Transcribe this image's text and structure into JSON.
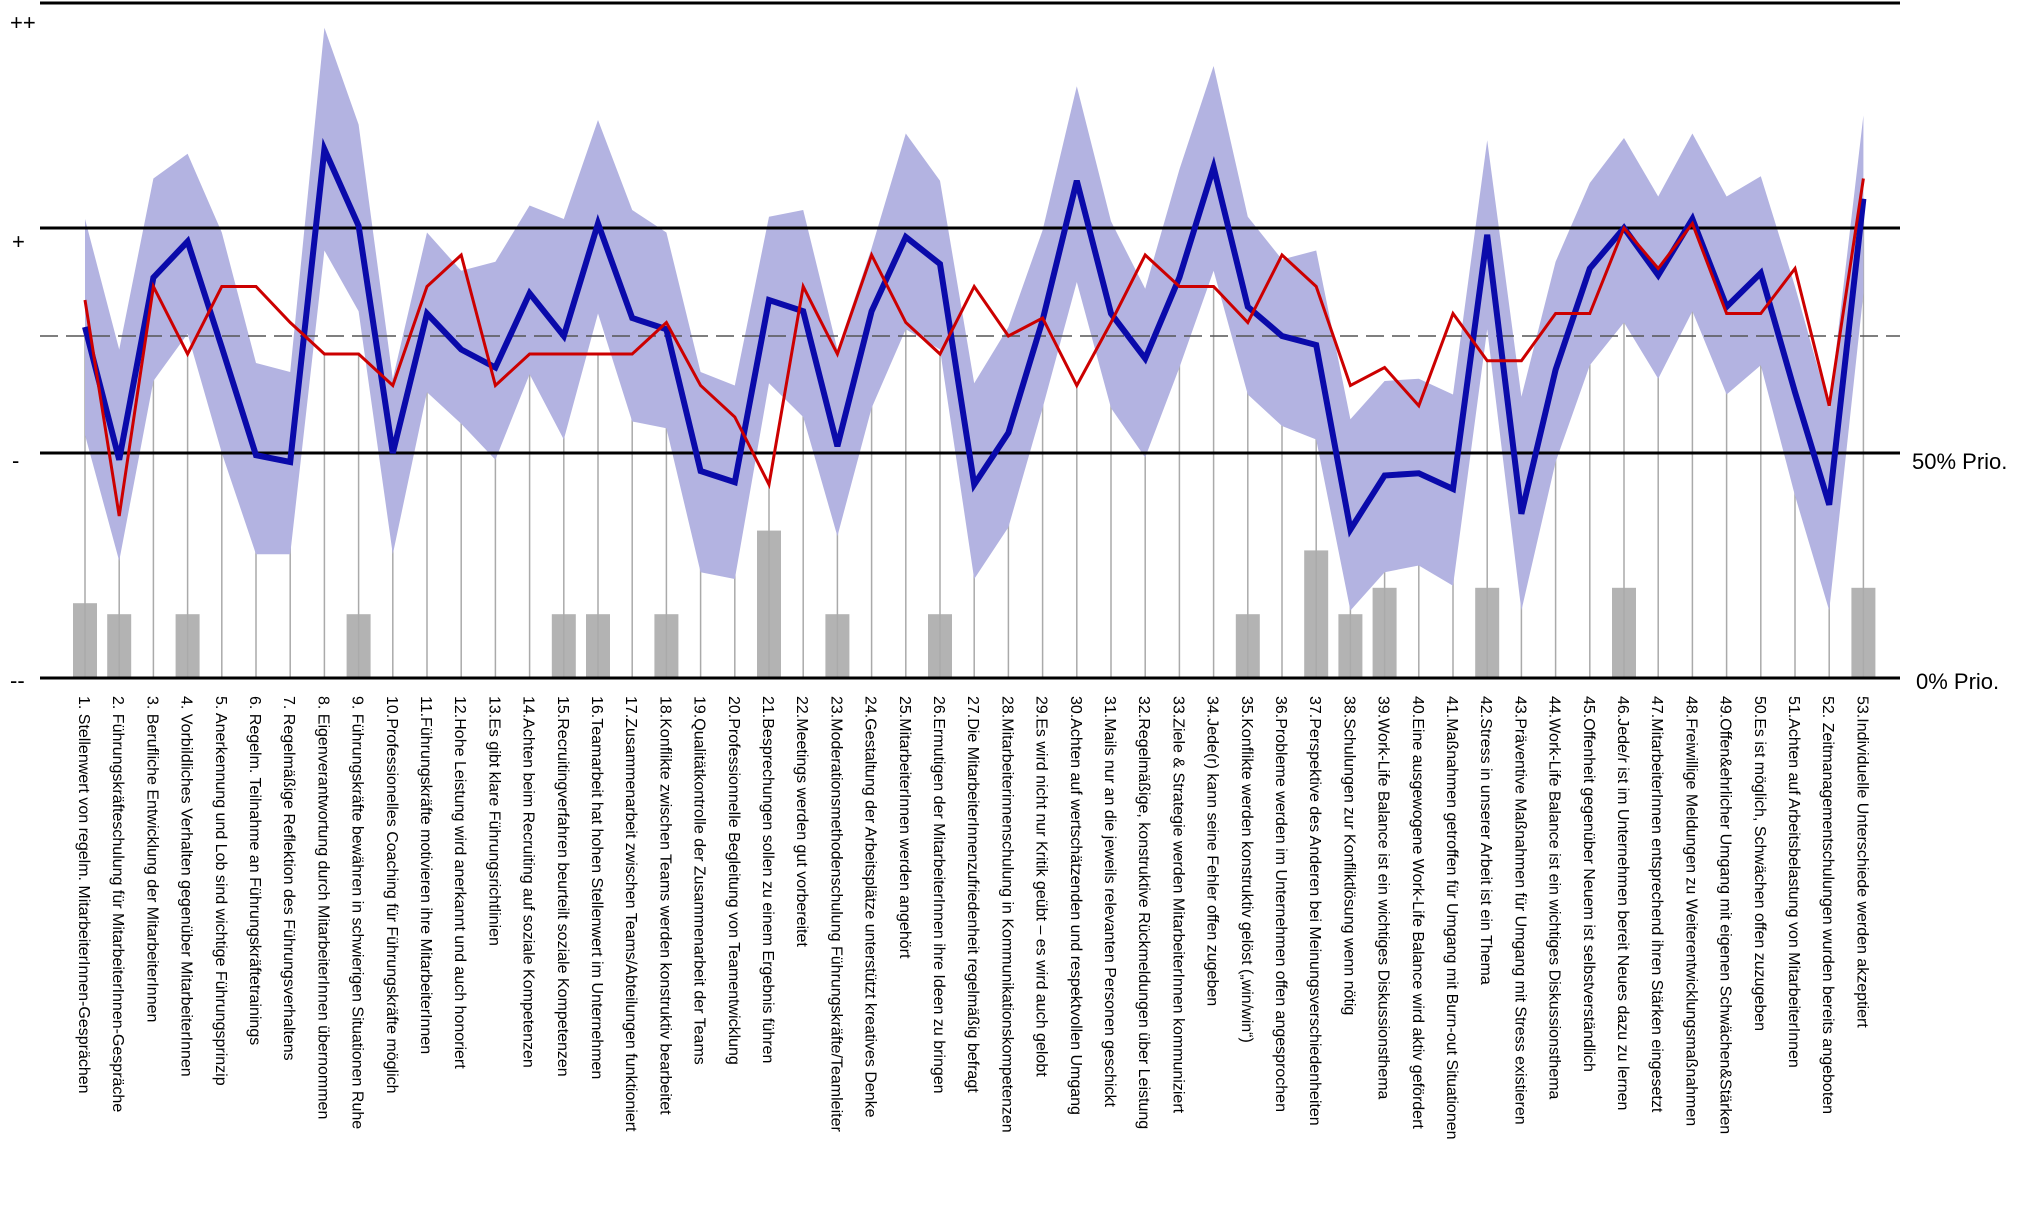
{
  "chart_data": {
    "type": "line",
    "title": "",
    "y_levels": [
      "++",
      "+",
      "-",
      "--"
    ],
    "right_labels": [
      "50% Prio.",
      "0% Prio."
    ],
    "categories": [
      "1.  Stellenwert von regelm. MitarbeiterInnen-Gesprächen",
      "2.  Führungskräfteschulung für MitarbeiterInnen-Gespräche",
      "3.  Berufliche Entwicklung der MitarbeiterInnen",
      "4.  Vorbildliches Verhalten gegenüber MitarbeiterInnen",
      "5.  Anerkennung und Lob sind wichtige Führungsprinzip",
      "6.  Regelm. Teilnahme an Führungskräftetrainings",
      "7.  Regelmäßige Reflektion des Führungsverhaltens",
      "8.  Eigenverantwortung durch MitarbeiterInnen übernommen",
      "9.  Führungskräfte bewähren in schwierigen Situationen Ruhe",
      "10.Professionelles Coaching für Führungskräfte möglich",
      "11.Führungskräfte motivieren ihre MitarbeiterInnen",
      "12.Hohe Leistung wird anerkannt und auch honoriert",
      "13.Es gibt klare Führungsrichtlinien",
      "14.Achten beim Recruiting auf soziale Kompetenzen",
      "15.Recruitingverfahren beurteilt soziale Kompetenzen",
      "16.Teamarbeit hat hohen Stellenwert im Unternehmen",
      "17.Zusammenarbeit zwischen Teams/Abteilungen funktioniert",
      "18.Konflikte zwischen Teams werden konstruktiv bearbeitet",
      "19.Qualitätkontrolle der Zusammenarbeit der Teams",
      "20.Professionnelle Begleitung von Teamentwicklung",
      "21.Besprechungen sollen zu einem Ergebnis führen",
      "22.Meetings werden gut vorbereitet",
      "23.Moderationsmethodenschulung Führungskräfte/Teamleiter",
      "24.Gestaltung der Arbeitsplätze unterstützt kreatives Denke",
      "25.MitarbeiterInnen werden angehört",
      "26.Ermutigen der MitarbeiterInnen ihre Ideen zu bringen",
      "27.Die MitarbeiterInnenzufriedenheit regelmäßig befragt",
      "28.Mitarbeiterinnenschulung in Kommunikationskompetenzen",
      "29.Es wird nicht nur Kritik geübt – es wird auch gelobt",
      "30.Achten auf wertschätzenden und respektvollen Umgang",
      "31.Mails nur an die jeweils relevanten Personen geschickt",
      "32.Regelmäßige, konstruktive Rückmeldungen über Leistung",
      "33.Ziele & Strategie werden MitarbeiterInnen kommuniziert",
      "34.Jede(r) kann seine Fehler offen zugeben",
      "35.Konflikte werden konstruktiv gelöst („win/win“)",
      "36.Probleme werden im Unternehmen offen angesprochen",
      "37.Perspektive des Anderen bei Meinungsverschiedenheiten",
      "38.Schulungen zur Konfliktlösung wenn nötig",
      "39.Work-Life Balance ist ein wichtiges Diskussionsthema",
      "40.Eine ausgewogene Work-Life Balance wird aktiv gefördert",
      "41.Maßnahmen getroffen für Umgang mit Burn-out Situationen",
      "42.Stress in unserer Arbeit ist ein Thema",
      "43.Präventive Maßnahmen für Umgang mit Stress existieren",
      "44.Work-Life Balance ist ein wichtiges Diskussionsthema",
      "45.Offenheit gegenüber Neuem ist selbstverständlich",
      "46.Jede/r ist im Unternehmen bereit Neues dazu zu lernen",
      "47.MitarbeiterInnen entsprechend ihren Stärken eingesetzt",
      "48.Freiwillige Meldungen zu Weiterentwicklungsmaßnahmen",
      "49.Offen&ehrlicher Umgang mit eigenen Schwächen&Stärken",
      "50.Es ist möglich, Schwächen offen zuzugeben",
      "51.Achten auf Arbeitsbelastung von MitarbeiterInnen",
      "52. Zeitmanagementschulungen wurden bereits angeboten",
      "53.Individuelle Unterschiede werden akzeptiert"
    ],
    "ylim": [
      0,
      3
    ],
    "y_tick_values": [
      3,
      2,
      1,
      0
    ],
    "reference_line_dashed": 1.52,
    "band_color": "#b3b3e1",
    "bar_color": "#b3b3b3",
    "series": [
      {
        "color": "#0a0aaa",
        "values": [
          1.56,
          0.97,
          1.78,
          1.94,
          1.47,
          0.99,
          0.96,
          2.35,
          2.01,
          1.0,
          1.62,
          1.46,
          1.38,
          1.71,
          1.52,
          2.02,
          1.6,
          1.55,
          0.92,
          0.87,
          1.68,
          1.63,
          1.03,
          1.63,
          1.96,
          1.84,
          0.86,
          1.09,
          1.59,
          2.21,
          1.62,
          1.42,
          1.78,
          2.27,
          1.65,
          1.52,
          1.48,
          0.66,
          0.9,
          0.91,
          0.84,
          1.97,
          0.73,
          1.37,
          1.82,
          2.0,
          1.79,
          2.04,
          1.65,
          1.8,
          1.27,
          0.77,
          2.13
        ]
      },
      {
        "color": "#cc0000",
        "values": [
          1.68,
          0.72,
          1.74,
          1.44,
          1.74,
          1.74,
          1.58,
          1.44,
          1.44,
          1.3,
          1.74,
          1.88,
          1.3,
          1.44,
          1.44,
          1.44,
          1.44,
          1.58,
          1.3,
          1.16,
          0.86,
          1.74,
          1.44,
          1.88,
          1.58,
          1.44,
          1.74,
          1.52,
          1.6,
          1.3,
          1.58,
          1.88,
          1.74,
          1.74,
          1.58,
          1.88,
          1.74,
          1.3,
          1.38,
          1.21,
          1.62,
          1.41,
          1.41,
          1.62,
          1.62,
          2.0,
          1.82,
          2.02,
          1.62,
          1.62,
          1.82,
          1.21,
          2.22
        ]
      }
    ],
    "band_upper": [
      2.04,
      1.46,
      2.22,
      2.33,
      1.98,
      1.4,
      1.36,
      2.89,
      2.46,
      1.33,
      1.98,
      1.81,
      1.85,
      2.1,
      2.04,
      2.48,
      2.08,
      1.98,
      1.36,
      1.3,
      2.05,
      2.08,
      1.46,
      1.91,
      2.42,
      2.21,
      1.31,
      1.56,
      1.99,
      2.63,
      2.03,
      1.73,
      2.26,
      2.72,
      2.05,
      1.86,
      1.9,
      1.15,
      1.32,
      1.33,
      1.26,
      2.39,
      1.25,
      1.85,
      2.2,
      2.4,
      2.14,
      2.42,
      2.14,
      2.23,
      1.74,
      1.2,
      2.5
    ],
    "band_lower": [
      1.08,
      0.52,
      1.32,
      1.53,
      1.0,
      0.55,
      0.55,
      1.9,
      1.63,
      0.55,
      1.27,
      1.13,
      0.97,
      1.35,
      1.06,
      1.62,
      1.14,
      1.11,
      0.47,
      0.44,
      1.31,
      1.16,
      0.63,
      1.2,
      1.55,
      1.46,
      0.44,
      0.67,
      1.2,
      1.76,
      1.2,
      0.98,
      1.38,
      1.81,
      1.26,
      1.12,
      1.06,
      0.3,
      0.47,
      0.5,
      0.41,
      1.55,
      0.3,
      0.96,
      1.39,
      1.58,
      1.33,
      1.63,
      1.26,
      1.39,
      0.81,
      0.3,
      1.71
    ],
    "bar_fractions": [
      0.34,
      0.29,
      0,
      0.29,
      0,
      0,
      0,
      0,
      0.29,
      0,
      0,
      0,
      0,
      0,
      0.29,
      0.29,
      0,
      0.29,
      0,
      0,
      0.67,
      0,
      0.29,
      0,
      0,
      0.29,
      0,
      0,
      0,
      0,
      0,
      0,
      0,
      0,
      0.29,
      0,
      0.58,
      0.29,
      0.41,
      0,
      0,
      0.41,
      0,
      0,
      0,
      0.41,
      0,
      0,
      0,
      0,
      0,
      0,
      0.41
    ]
  }
}
